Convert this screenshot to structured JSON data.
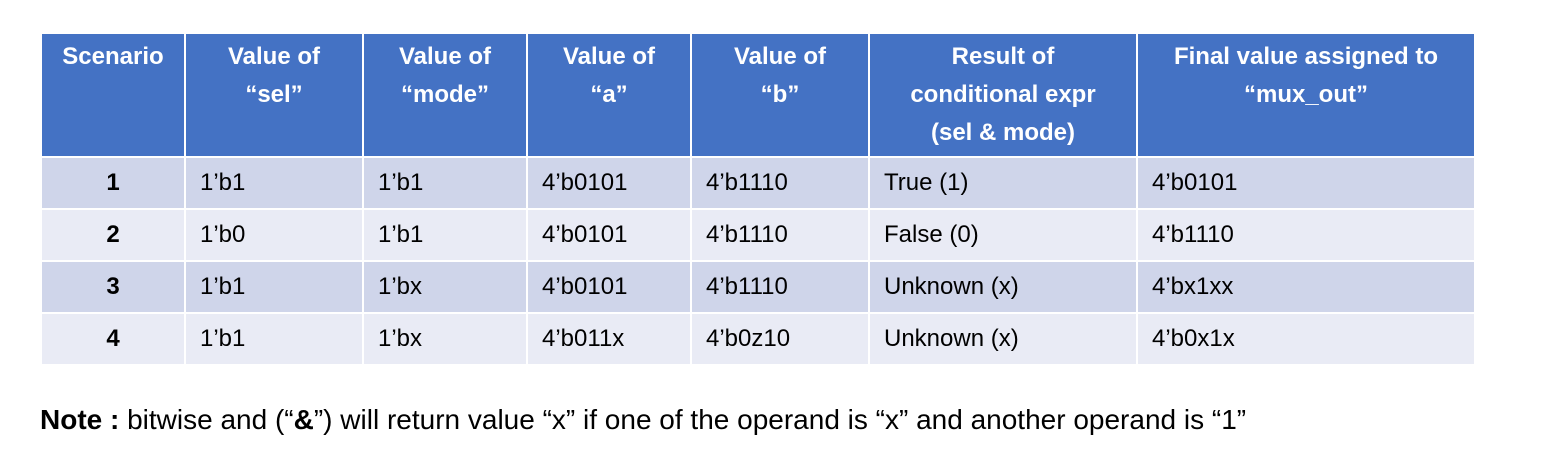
{
  "table": {
    "headers": [
      [
        "Scenario"
      ],
      [
        "Value of",
        "“sel”"
      ],
      [
        "Value of",
        "“mode”"
      ],
      [
        "Value of",
        "“a”"
      ],
      [
        "Value of",
        "“b”"
      ],
      [
        "Result of",
        "conditional expr",
        "(sel & mode)"
      ],
      [
        "Final value assigned to",
        "“mux_out”"
      ]
    ],
    "rows": [
      [
        "1",
        "1’b1",
        "1’b1",
        "4’b0101",
        "4’b1110",
        "True (1)",
        "4’b0101"
      ],
      [
        "2",
        "1’b0",
        "1’b1",
        "4’b0101",
        "4’b1110",
        "False (0)",
        "4’b1110"
      ],
      [
        "3",
        "1’b1",
        "1’bx",
        "4’b0101",
        "4’b1110",
        "Unknown (x)",
        "4’bx1xx"
      ],
      [
        "4",
        "1’b1",
        "1’bx",
        "4’b011x",
        "4’b0z10",
        "Unknown (x)",
        "4’b0x1x"
      ]
    ]
  },
  "note": {
    "label": "Note :",
    "text_before": " bitwise and (“",
    "operator": "&",
    "text_after": "”) will return value “x” if one of the operand is “x” and another operand is “1”"
  },
  "colors": {
    "header_bg": "#4472c4",
    "row_dark": "#cfd5ea",
    "row_light": "#e9ebf5"
  }
}
